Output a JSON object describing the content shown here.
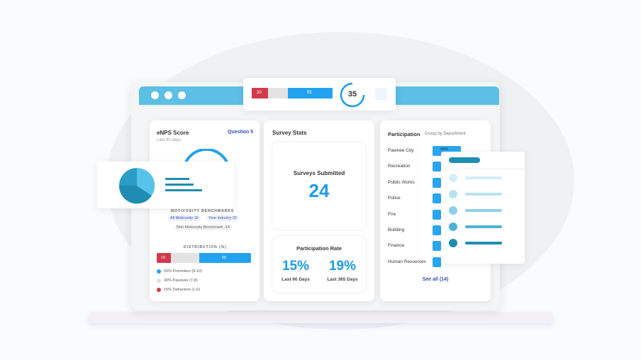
{
  "top_widget": {
    "bar_left": "20",
    "bar_right": "55",
    "gauge": "35"
  },
  "enps_card": {
    "title": "eNPS Score",
    "link": "Question 5",
    "subtitle": "Last 90 days",
    "benchmarks_title": "MOTIVOSITY BENCHMARKS",
    "benchmark_all": "All Motivosity 16",
    "benchmark_industry": "Your Industry 22",
    "benchmark_non": "Non Motivosity Benchmark -14",
    "distribution_title": "DISTRIBUTION (%)",
    "bar_left": "15",
    "bar_right": "55",
    "legend": [
      "55% Promoters (9-10)",
      "30% Passives (7-8)",
      "15% Detractors (1-6)"
    ]
  },
  "stats_card": {
    "title": "Survey Stats",
    "submitted_label": "Surveys Submitted",
    "submitted_value": "24",
    "rate_title": "Participation Rate",
    "rate_90": "15%",
    "rate_90_label": "Last 90 Days",
    "rate_365": "19%",
    "rate_365_label": "Last 365 Days"
  },
  "participation_card": {
    "title": "Participation",
    "group_by": "Group by Department",
    "departments": [
      "Pawnee City",
      "Recreation",
      "Public Works",
      "Police",
      "Fire",
      "Building",
      "Finance",
      "Human Resources"
    ],
    "first_value": "90%",
    "see_all": "See all (14)"
  }
}
